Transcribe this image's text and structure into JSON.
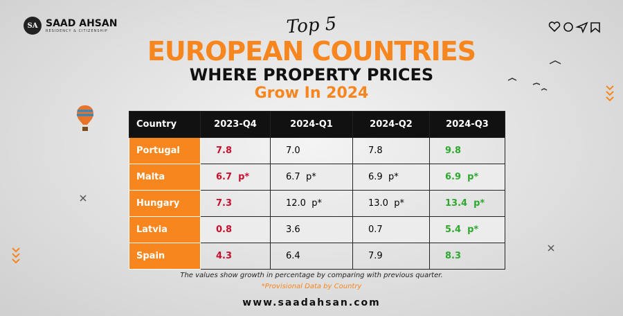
{
  "brand": {
    "logo": "SA",
    "name": "SAAD AHSAN",
    "tagline": "RESIDENCY & CITIZENSHIP"
  },
  "header": {
    "script": "Top 5",
    "title": "EUROPEAN COUNTRIES",
    "subtitle": "WHERE PROPERTY PRICES",
    "highlight": "Grow In 2024"
  },
  "table": {
    "columns": [
      "Country",
      "2023-Q4",
      "2024-Q1",
      "2024-Q2",
      "2024-Q3"
    ],
    "rows": [
      [
        "Portugal",
        "7.8",
        "7.0",
        "7.8",
        "9.8"
      ],
      [
        "Malta",
        "6.7  p*",
        "6.7  p*",
        "6.9  p*",
        "6.9  p*"
      ],
      [
        "Hungary",
        "7.3",
        "12.0  p*",
        "13.0  p*",
        "13.4  p*"
      ],
      [
        "Latvia",
        "0.8",
        "3.6",
        "0.7",
        "5.4  p*"
      ],
      [
        "Spain",
        "4.3",
        "6.4",
        "7.9",
        "8.3"
      ]
    ]
  },
  "footer": {
    "note": "The values show growth in percentage by comparing with previous quarter.",
    "provisional": "*Provisional Data by Country",
    "website": "www.saadahsan.com"
  }
}
